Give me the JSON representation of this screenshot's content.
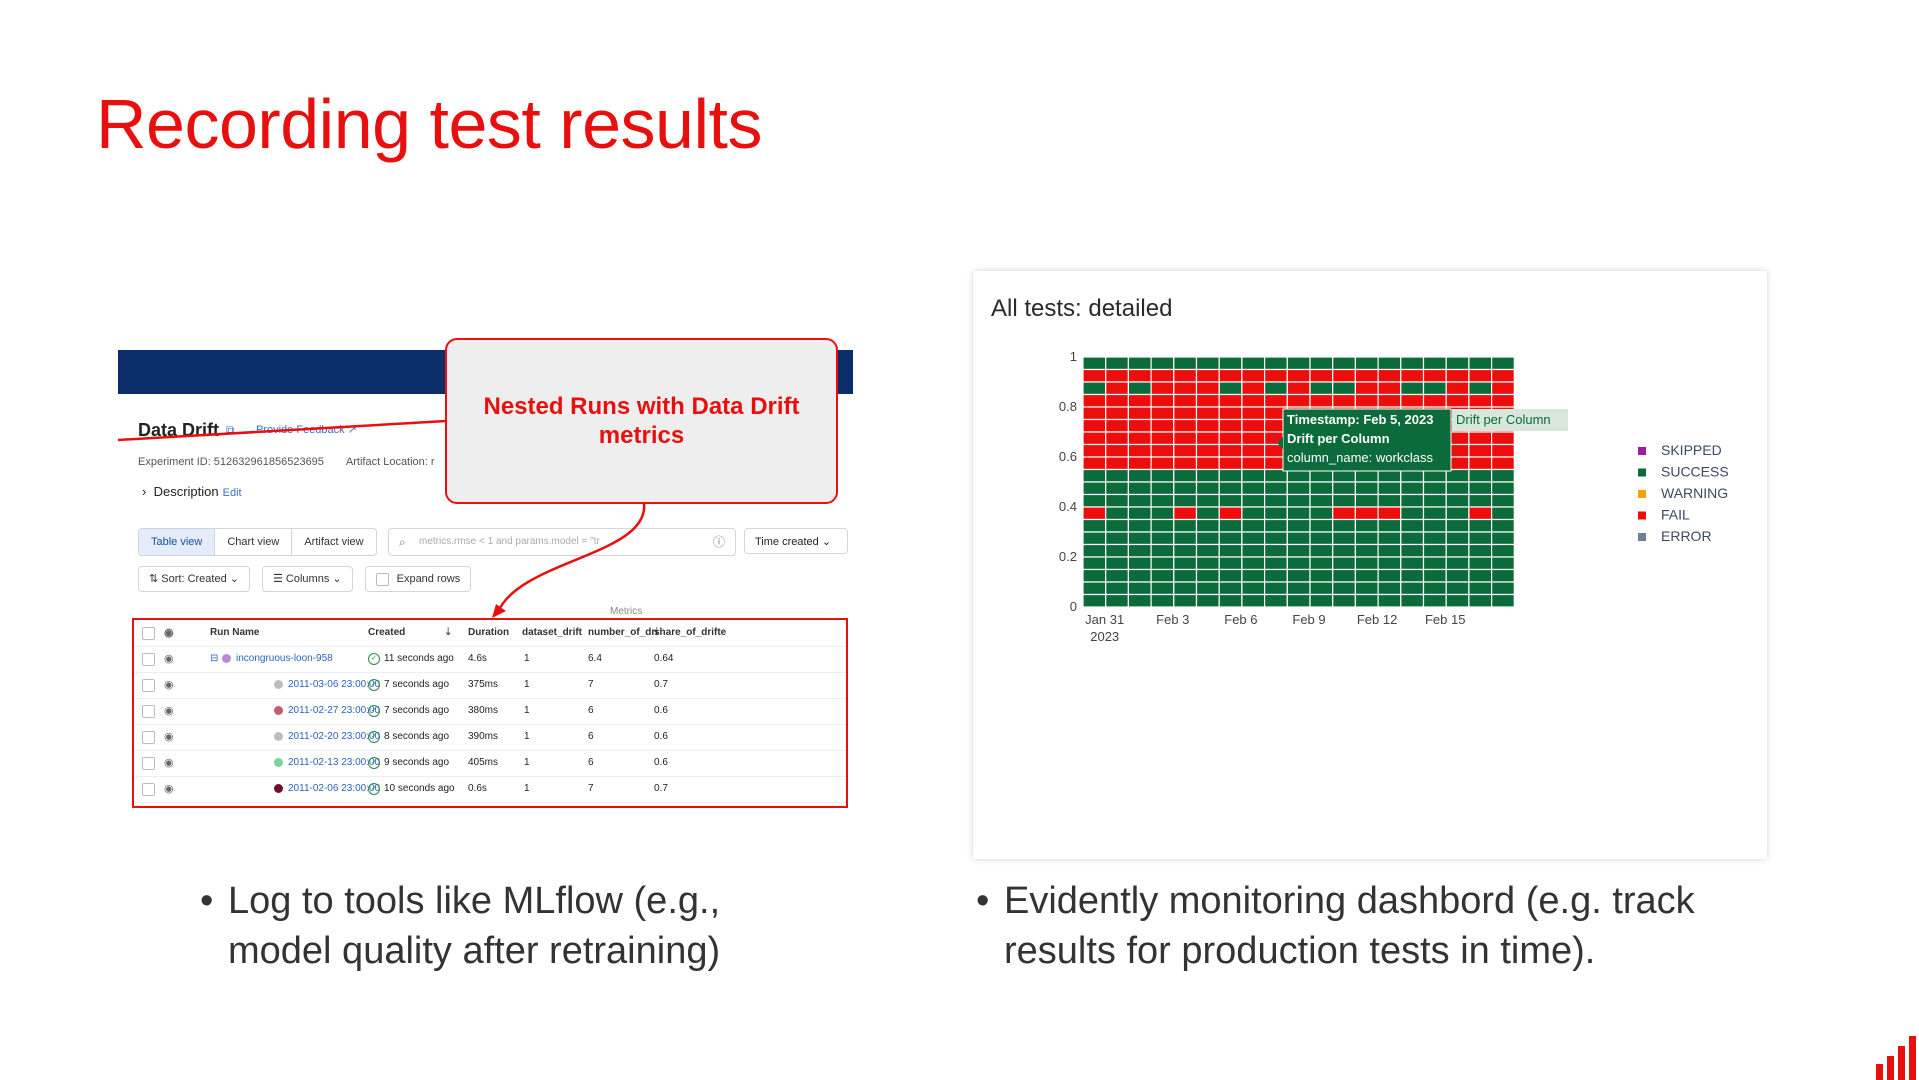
{
  "slide": {
    "title": "Recording test results",
    "bullets": [
      "Log to tools like MLflow (e.g., model quality after retraining)",
      "Evidently monitoring dashbord (e.g. track results for production tests in time)."
    ],
    "accent_color": "#e8100f"
  },
  "mlflow": {
    "experiment_title": "Data Drift",
    "feedback_link": "Provide Feedback",
    "meta": "Experiment ID: 512632961856523695",
    "artifact_label": "Artifact Location: r",
    "description": "Description",
    "edit": "Edit",
    "views": [
      "Table view",
      "Chart view",
      "Artifact view"
    ],
    "search_placeholder": "metrics.rmse < 1 and params.model = \"tr",
    "time_created": "Time created",
    "sort": "Sort: Created",
    "columns": "Columns",
    "expand_rows": "Expand rows",
    "metrics_group": "Metrics",
    "headers": [
      "Run Name",
      "Created",
      "Duration",
      "dataset_drift",
      "number_of_dri",
      "share_of_drifte"
    ],
    "rows": [
      {
        "name": "incongruous-loon-958",
        "created": "11 seconds ago",
        "duration": "4.6s",
        "dataset_drift": "1",
        "number": "6.4",
        "share": "0.64",
        "color": "#b98ad8"
      },
      {
        "name": "2011-03-06 23:00:00",
        "created": "7 seconds ago",
        "duration": "375ms",
        "dataset_drift": "1",
        "number": "7",
        "share": "0.7",
        "color": "#bdbdbd"
      },
      {
        "name": "2011-02-27 23:00:00",
        "created": "7 seconds ago",
        "duration": "380ms",
        "dataset_drift": "1",
        "number": "6",
        "share": "0.6",
        "color": "#c65a6a"
      },
      {
        "name": "2011-02-20 23:00:00",
        "created": "8 seconds ago",
        "duration": "390ms",
        "dataset_drift": "1",
        "number": "6",
        "share": "0.6",
        "color": "#bdbdbd"
      },
      {
        "name": "2011-02-13 23:00:00",
        "created": "9 seconds ago",
        "duration": "405ms",
        "dataset_drift": "1",
        "number": "6",
        "share": "0.6",
        "color": "#7fd39a"
      },
      {
        "name": "2011-02-06 23:00:00",
        "created": "10 seconds ago",
        "duration": "0.6s",
        "dataset_drift": "1",
        "number": "7",
        "share": "0.7",
        "color": "#6b1030"
      }
    ],
    "callout": "Nested Runs with Data Drift metrics"
  },
  "chart_data": {
    "type": "heatmap",
    "title": "All tests: detailed",
    "x_ticks": [
      "Jan 31",
      "Feb 3",
      "Feb 6",
      "Feb 9",
      "Feb 12",
      "Feb 15"
    ],
    "x_tick_sub": "2023",
    "y_ticks": [
      "0",
      "0.2",
      "0.4",
      "0.6",
      "0.8",
      "1"
    ],
    "ylim": [
      0,
      1
    ],
    "legend": [
      {
        "name": "SKIPPED",
        "color": "#9b1f9b"
      },
      {
        "name": "SUCCESS",
        "color": "#0b6b3a"
      },
      {
        "name": "WARNING",
        "color": "#f2a20c"
      },
      {
        "name": "FAIL",
        "color": "#ee0d0d"
      },
      {
        "name": "ERROR",
        "color": "#6b7f99"
      }
    ],
    "columns": 19,
    "rows_top_to_bottom": [
      "SSSSSSSSSSSSSSSSSSS",
      "FFFFFFFFFFFFFFFFFFF",
      "SFSFFFSFSFSSFFSSFSF",
      "FFFFFFFFFFFFFFFFFFF",
      "FFFFFFFFFFFFFFFFFFF",
      "FFFFFFFFFFFFFFFFFFF",
      "FFFFFFFFFFFFFFFFFFF",
      "FFFFFFFFFFFFFFFFFFF",
      "FFFFFFFFFFFFFFFFFFF",
      "SSSSSSSSSSSSSSSSSSS",
      "SSSSSSSSSSSSSSSSSSS",
      "SSSSSSSSSSSSSSSSSSS",
      "FSSSFSFSSSSFFFSSSFS",
      "SSSSSSSSSSSSSSSSSSS",
      "SSSSSSSSSSSSSSSSSSS",
      "SSSSSSSSSSSSSSSSSSS",
      "SSSSSSSSSSSSSSSSSSS",
      "SSSSSSSSSSSSSSSSSSS",
      "SSSSSSSSSSSSSSSSSSS",
      "SSSSSSSSSSSSSSSSSSS"
    ],
    "tooltip": {
      "header": "Timestamp: Feb 5, 2023",
      "side": "Drift per Column",
      "line1": "Drift per Column",
      "line2": "column_name: workclass"
    }
  }
}
